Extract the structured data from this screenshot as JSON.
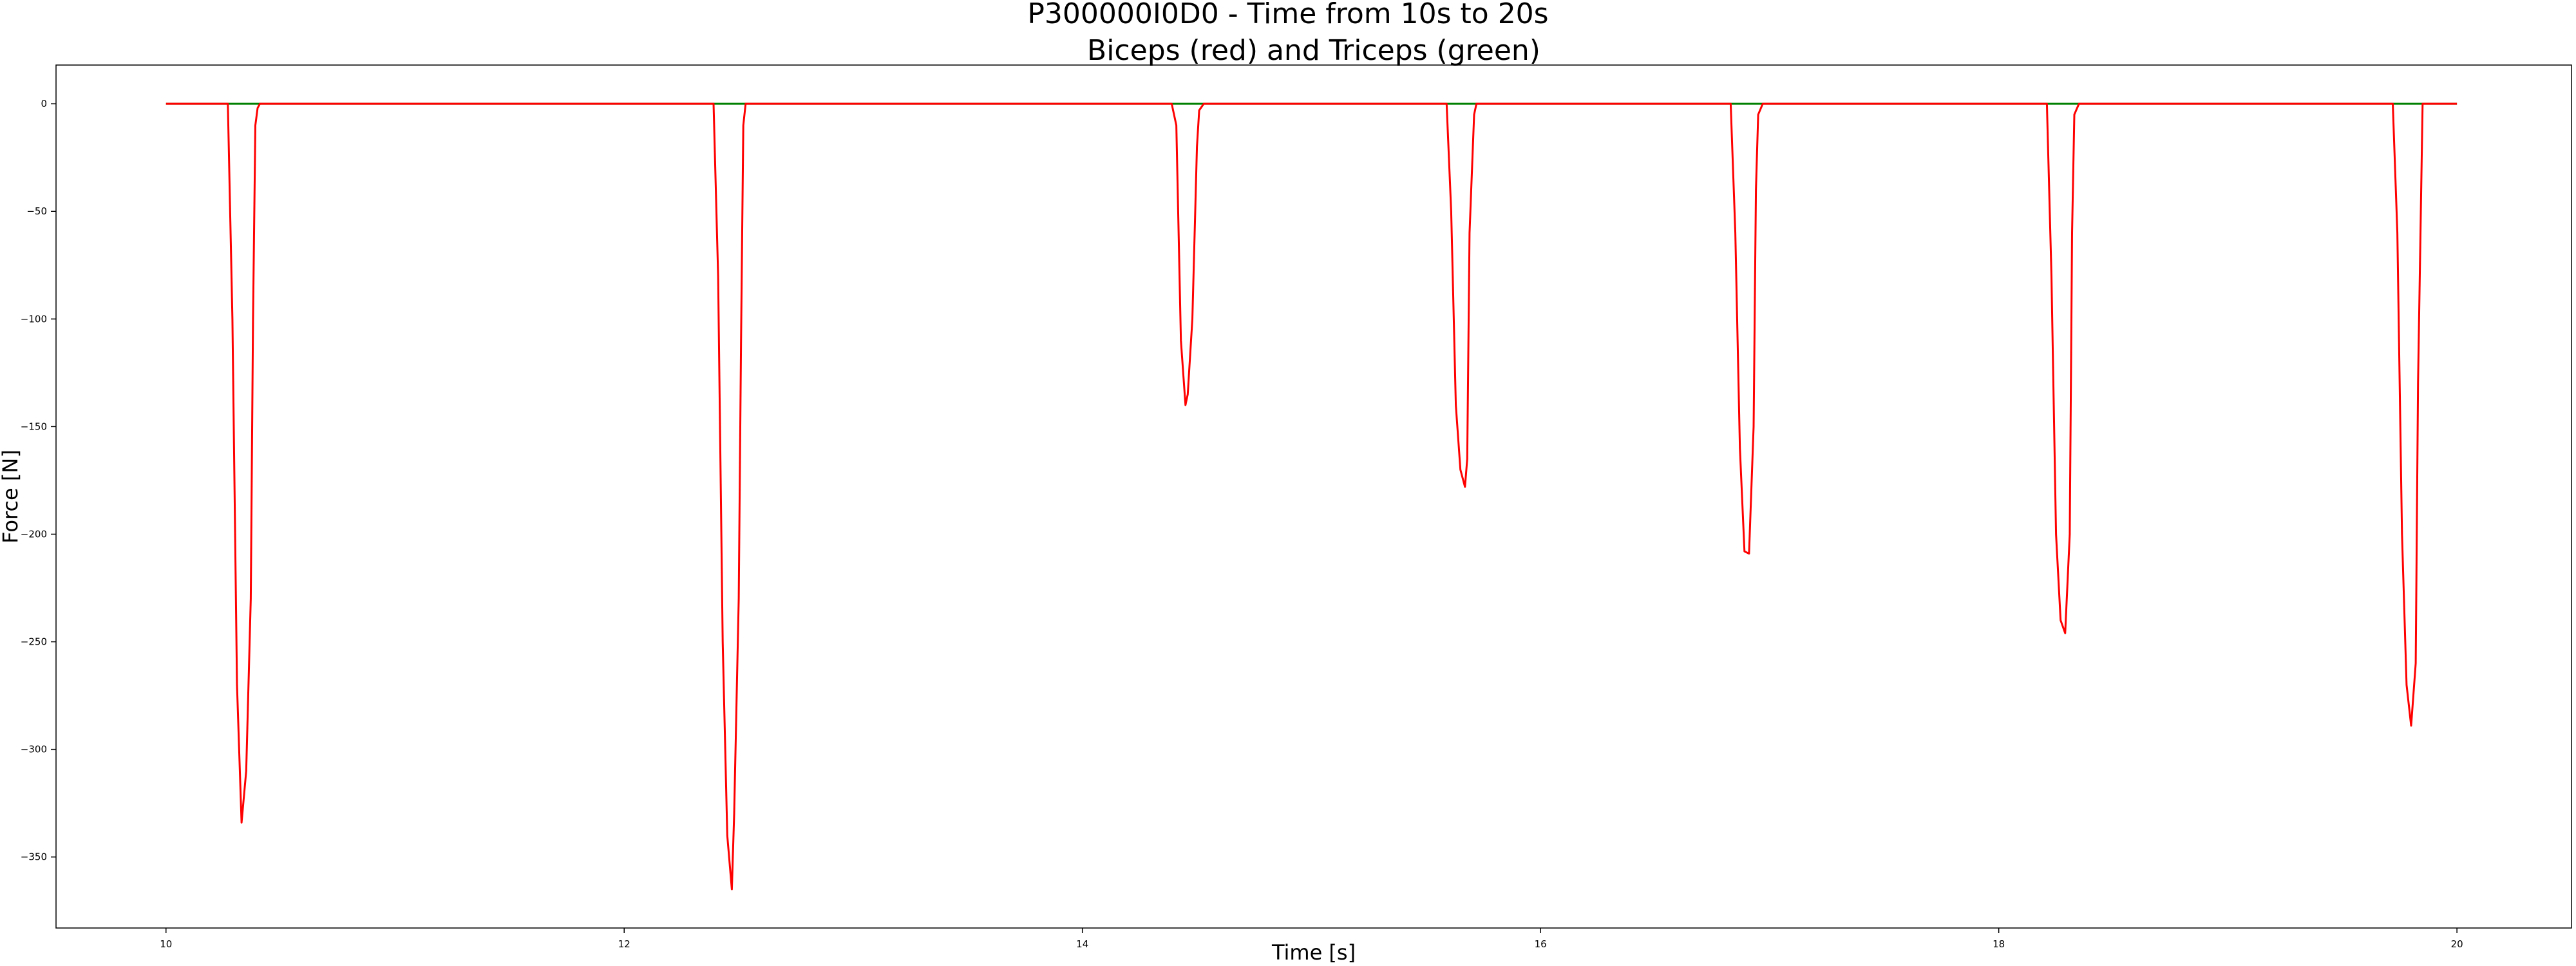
{
  "chart_data": {
    "type": "line",
    "title": "P300000I0D0 - Time from 10s to 20s",
    "subtitle": "Biceps (red) and Triceps (green)",
    "xlabel": "Time [s]",
    "ylabel": "Force [N]",
    "xlim": [
      9.52,
      20.5
    ],
    "ylim": [
      -383,
      18
    ],
    "xticks": [
      10,
      12,
      14,
      16,
      18,
      20
    ],
    "yticks": [
      0,
      -50,
      -100,
      -150,
      -200,
      -250,
      -300,
      -350
    ],
    "grid": false,
    "series": [
      {
        "name": "Biceps",
        "color": "#ff0000",
        "x": [
          10.0,
          10.27,
          10.29,
          10.31,
          10.33,
          10.35,
          10.37,
          10.38,
          10.39,
          10.4,
          10.41,
          12.39,
          12.41,
          12.43,
          12.45,
          12.47,
          12.48,
          12.5,
          12.51,
          12.52,
          12.53,
          14.39,
          14.41,
          14.43,
          14.45,
          14.46,
          14.48,
          14.5,
          14.51,
          14.53,
          15.59,
          15.61,
          15.63,
          15.65,
          15.67,
          15.68,
          15.69,
          15.71,
          15.72,
          16.83,
          16.85,
          16.87,
          16.89,
          16.91,
          16.93,
          16.94,
          16.95,
          16.97,
          18.21,
          18.23,
          18.25,
          18.27,
          18.29,
          18.31,
          18.32,
          18.33,
          18.35,
          19.72,
          19.74,
          19.76,
          19.78,
          19.8,
          19.82,
          19.83,
          19.85,
          20.0
        ],
        "values": [
          0,
          0,
          -100,
          -270,
          -334,
          -310,
          -230,
          -100,
          -10,
          -2,
          0,
          0,
          -80,
          -250,
          -340,
          -365,
          -330,
          -230,
          -110,
          -10,
          0,
          0,
          -10,
          -110,
          -140,
          -135,
          -100,
          -20,
          -3,
          0,
          0,
          -50,
          -140,
          -170,
          -178,
          -165,
          -60,
          -5,
          0,
          0,
          -60,
          -160,
          -208,
          -209,
          -150,
          -40,
          -5,
          0,
          0,
          -80,
          -200,
          -240,
          -246,
          -200,
          -60,
          -5,
          0,
          0,
          -60,
          -200,
          -270,
          -289,
          -260,
          -130,
          0,
          0
        ]
      },
      {
        "name": "Triceps",
        "color": "#008000",
        "x": [
          10.0,
          20.0
        ],
        "values": [
          0,
          0
        ]
      }
    ]
  }
}
